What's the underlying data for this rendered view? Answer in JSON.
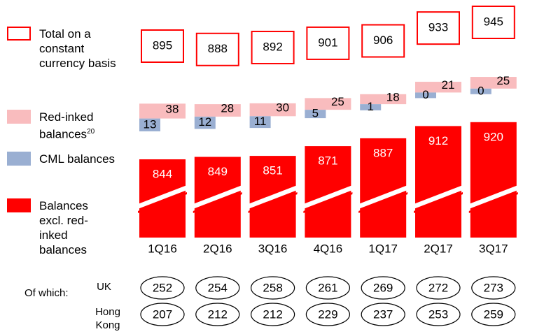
{
  "chart_data": {
    "type": "bar",
    "categories": [
      "1Q16",
      "2Q16",
      "3Q16",
      "4Q16",
      "1Q17",
      "2Q17",
      "3Q17"
    ],
    "series": [
      {
        "name": "Balances excl. red-inked balances",
        "color": "#ff0000",
        "values": [
          844,
          849,
          851,
          871,
          887,
          912,
          920
        ]
      },
      {
        "name": "CML balances",
        "color": "#9aafd2",
        "values": [
          13,
          12,
          11,
          5,
          1,
          0,
          0
        ]
      },
      {
        "name": "Red-inked balances",
        "name_superscript": "20",
        "color": "#f9bcbe",
        "values": [
          38,
          28,
          30,
          25,
          18,
          21,
          25
        ]
      }
    ],
    "totals": {
      "name": "Total on a constant currency basis",
      "color": "#ff0000",
      "values": [
        895,
        888,
        892,
        901,
        906,
        933,
        945
      ]
    },
    "breakdown": {
      "title": "Of which:",
      "rows": [
        {
          "name": "UK",
          "values": [
            252,
            254,
            258,
            261,
            269,
            272,
            273
          ]
        },
        {
          "name": "Hong Kong",
          "values": [
            207,
            212,
            212,
            229,
            237,
            253,
            259
          ]
        }
      ]
    }
  }
}
